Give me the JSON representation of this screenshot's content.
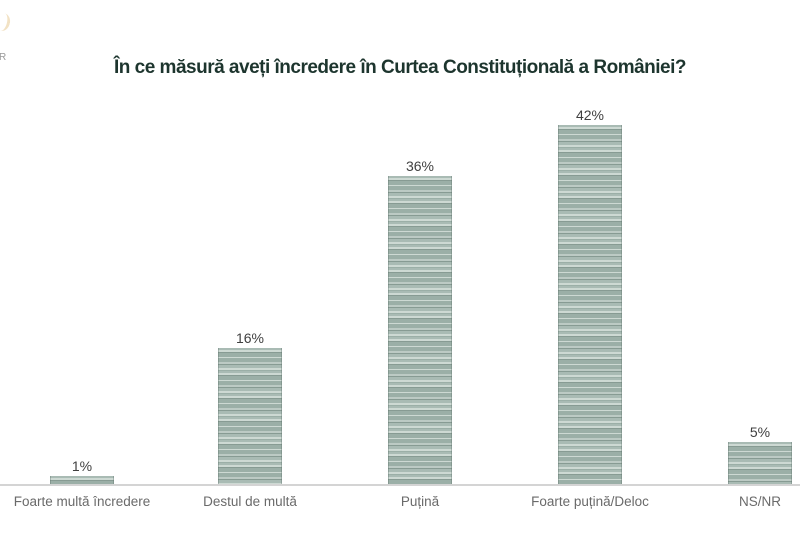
{
  "logo": {
    "letter_fragment": "R",
    "stroke_color": "#f0ddba"
  },
  "title": {
    "text": "În ce măsură aveți încredere în Curtea Constituțională a României?",
    "color": "#1d352e"
  },
  "chart_data": {
    "type": "bar",
    "title": "În ce măsură aveți încredere în Curtea Constituțională a României?",
    "categories": [
      "Foarte multă încredere",
      "Destul de multă",
      "Puțină",
      "Foarte puțină/Deloc",
      "NS/NR"
    ],
    "values": [
      1,
      16,
      36,
      42,
      5
    ],
    "value_labels": [
      "1%",
      "16%",
      "36%",
      "42%",
      "5%"
    ],
    "unit": "%",
    "ylim": [
      0,
      45
    ],
    "grid": false,
    "legend": false,
    "bar_base_color": "#9bafa7",
    "bar_stripe_light": "#cdd9d3",
    "bar_stripe_dark": "#879b93",
    "axis_line_color": "#d4d4d4",
    "value_label_color": "#3f3f3f",
    "category_label_color": "#6a6a6a",
    "title_color": "#1d352e"
  }
}
